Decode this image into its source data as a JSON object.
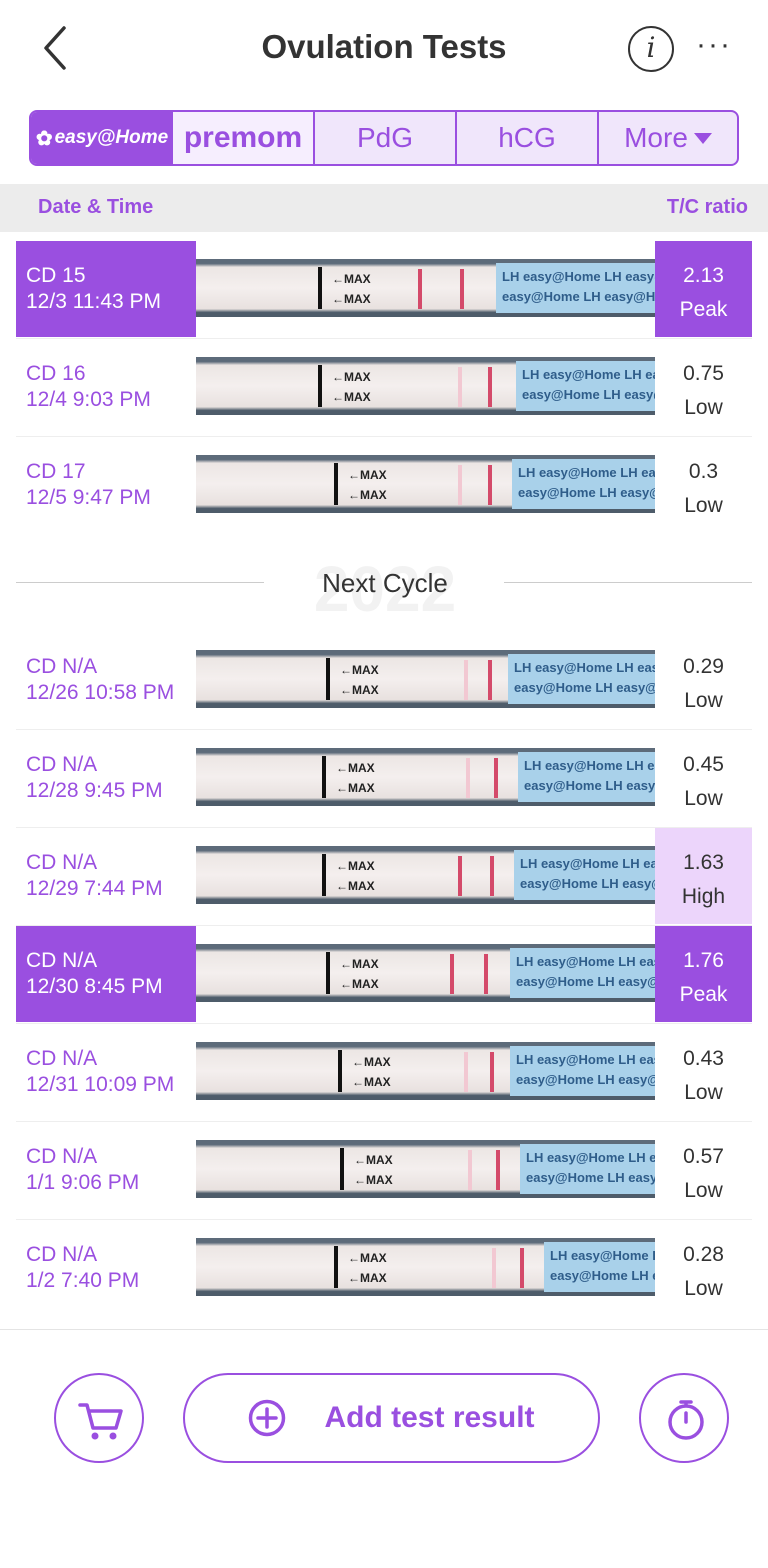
{
  "header": {
    "title": "Ovulation Tests",
    "info_symbol": "i",
    "more_symbol": "···"
  },
  "brand_tabs": {
    "easy_home": "easy@Home",
    "premom": "premom",
    "pdg": "PdG",
    "hcg": "hCG",
    "more": "More"
  },
  "columns": {
    "date": "Date & Time",
    "ratio": "T/C ratio"
  },
  "strip_text": {
    "max": "←MAX",
    "blue_line1": "LH easy@Home LH easy@Home",
    "blue_line2": "easy@Home LH easy@Home LH"
  },
  "rows": [
    {
      "cd": "CD 15",
      "datetime": "12/3 11:43 PM",
      "ratio": "2.13",
      "level": "Peak"
    },
    {
      "cd": "CD 16",
      "datetime": "12/4 9:03 PM",
      "ratio": "0.75",
      "level": "Low"
    },
    {
      "cd": "CD 17",
      "datetime": "12/5 9:47 PM",
      "ratio": "0.3",
      "level": "Low"
    },
    {
      "cd": "CD N/A",
      "datetime": "12/26 10:58 PM",
      "ratio": "0.29",
      "level": "Low"
    },
    {
      "cd": "CD N/A",
      "datetime": "12/28 9:45 PM",
      "ratio": "0.45",
      "level": "Low"
    },
    {
      "cd": "CD N/A",
      "datetime": "12/29 7:44 PM",
      "ratio": "1.63",
      "level": "High"
    },
    {
      "cd": "CD N/A",
      "datetime": "12/30 8:45 PM",
      "ratio": "1.76",
      "level": "Peak"
    },
    {
      "cd": "CD N/A",
      "datetime": "12/31 10:09 PM",
      "ratio": "0.43",
      "level": "Low"
    },
    {
      "cd": "CD N/A",
      "datetime": "1/1 9:06 PM",
      "ratio": "0.57",
      "level": "Low"
    },
    {
      "cd": "CD N/A",
      "datetime": "1/2 7:40 PM",
      "ratio": "0.28",
      "level": "Low"
    }
  ],
  "divider": {
    "label": "Next Cycle",
    "watermark": "2022"
  },
  "footer": {
    "add_label": "Add test result"
  },
  "colors": {
    "accent": "#9a4fe0",
    "high_bg": "#ecd5fb",
    "header_bg": "#ececec"
  },
  "icons": {
    "back": "chevron-left-icon",
    "info": "info-icon",
    "more": "more-dots-icon",
    "cart": "cart-icon",
    "add": "plus-circle-icon",
    "timer": "timer-icon"
  }
}
